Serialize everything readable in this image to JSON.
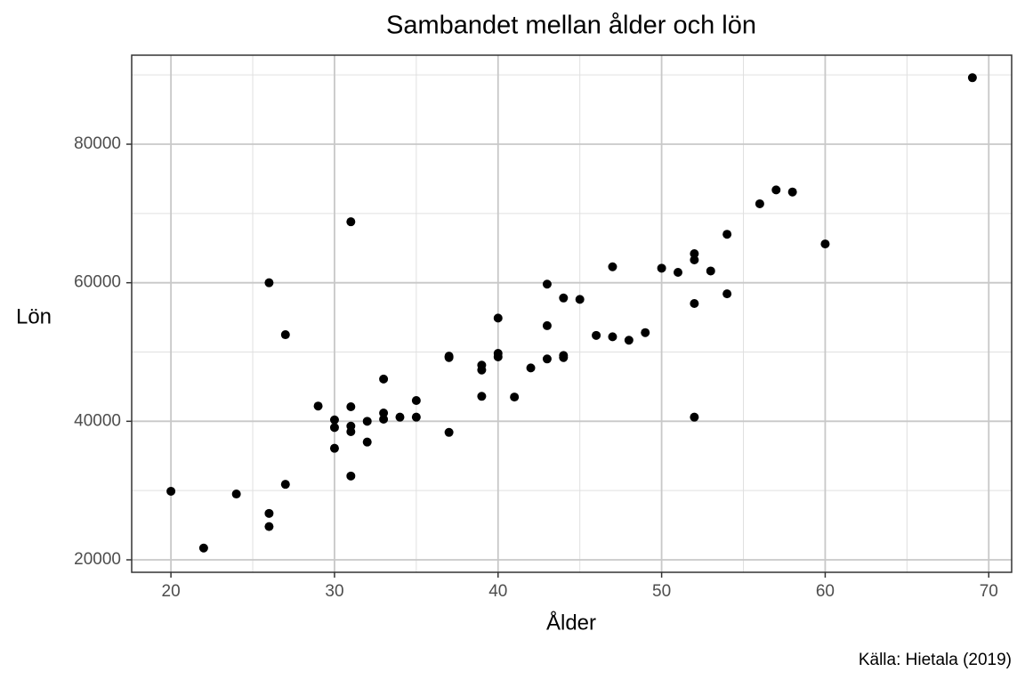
{
  "chart_data": {
    "type": "scatter",
    "title": "Sambandet mellan ålder och lön",
    "x_label": "Ålder",
    "y_label": "Lön",
    "caption": "Källa: Hietala (2019)",
    "color": "#000000",
    "grid": true,
    "xlim": [
      17.6,
      71.4
    ],
    "xticks": [
      20,
      30,
      40,
      50,
      60,
      70
    ],
    "ylim": [
      18200,
      92850
    ],
    "yticks": [
      20000,
      40000,
      60000,
      80000
    ],
    "x": [
      20,
      22,
      24,
      26,
      26,
      26,
      27,
      27,
      29,
      30,
      30,
      30,
      31,
      31,
      31,
      31,
      31,
      32,
      32,
      33,
      33,
      33,
      34,
      35,
      35,
      37,
      37,
      37,
      39,
      39,
      39,
      40,
      40,
      40,
      41,
      42,
      43,
      43,
      43,
      44,
      44,
      44,
      45,
      46,
      47,
      47,
      48,
      49,
      50,
      51,
      52,
      52,
      52,
      52,
      53,
      54,
      54,
      56,
      57,
      58,
      60,
      69
    ],
    "values": [
      29900,
      21700,
      29500,
      26700,
      24800,
      60000,
      30900,
      52500,
      42200,
      40200,
      39100,
      36100,
      68800,
      42100,
      39300,
      38500,
      32100,
      40000,
      37000,
      46100,
      41200,
      40300,
      40600,
      43000,
      40600,
      49400,
      49200,
      38400,
      48100,
      47400,
      43600,
      54900,
      49800,
      49300,
      43500,
      47700,
      59800,
      53800,
      49000,
      57800,
      49500,
      49200,
      57600,
      52400,
      62300,
      52200,
      51700,
      52800,
      62100,
      61500,
      64200,
      63300,
      57000,
      40600,
      61700,
      67000,
      58400,
      71400,
      73400,
      73100,
      65600,
      89600
    ]
  }
}
